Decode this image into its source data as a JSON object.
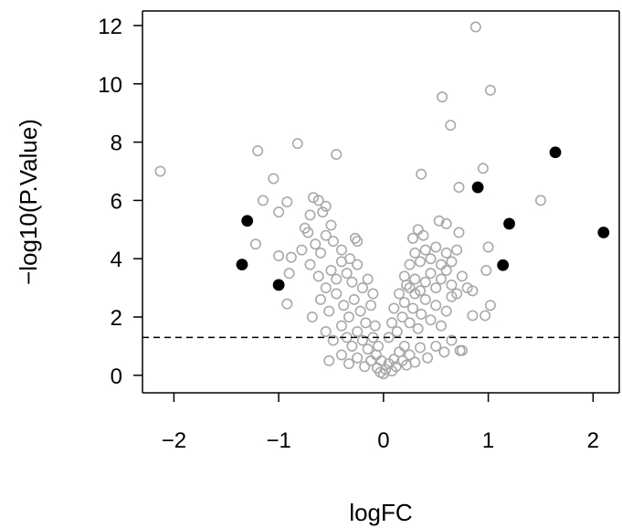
{
  "chart_data": {
    "type": "scatter",
    "title": "",
    "xlabel": "logFC",
    "ylabel": "−log10(P.Value)",
    "xlim": [
      -2.3,
      2.25
    ],
    "ylim": [
      -0.6,
      12.5
    ],
    "x_ticks": [
      -2,
      -1,
      0,
      1,
      2
    ],
    "x_tick_labels": [
      "−2",
      "−1",
      "0",
      "1",
      "2"
    ],
    "y_ticks": [
      0,
      2,
      4,
      6,
      8,
      10,
      12
    ],
    "y_tick_labels": [
      "0",
      "2",
      "4",
      "6",
      "8",
      "10",
      "12"
    ],
    "threshold_y": 1.3,
    "grid": false,
    "legend": "none",
    "colors": {
      "nonsignificant": "#a9a9a9",
      "highlighted": "#000000"
    },
    "series": [
      {
        "marker": "open-circle",
        "color": "#a9a9a9",
        "points": [
          [
            -2.13,
            7.0
          ],
          [
            -1.2,
            7.7
          ],
          [
            -1.15,
            6.0
          ],
          [
            -1.05,
            6.75
          ],
          [
            -1.0,
            5.6
          ],
          [
            -1.22,
            4.5
          ],
          [
            -1.0,
            4.1
          ],
          [
            -0.92,
            5.95
          ],
          [
            -0.88,
            4.05
          ],
          [
            -0.82,
            7.95
          ],
          [
            -0.9,
            3.5
          ],
          [
            -0.92,
            2.45
          ],
          [
            -0.78,
            4.3
          ],
          [
            -0.75,
            5.05
          ],
          [
            -0.7,
            5.5
          ],
          [
            -0.67,
            6.1
          ],
          [
            -0.62,
            6.0
          ],
          [
            -0.58,
            5.6
          ],
          [
            -0.55,
            5.8
          ],
          [
            -0.5,
            5.15
          ],
          [
            -0.45,
            7.58
          ],
          [
            -0.72,
            4.9
          ],
          [
            -0.65,
            4.5
          ],
          [
            -0.6,
            4.2
          ],
          [
            -0.55,
            4.8
          ],
          [
            -0.48,
            4.6
          ],
          [
            -0.4,
            4.3
          ],
          [
            -0.32,
            4.0
          ],
          [
            -0.27,
            4.7
          ],
          [
            -0.25,
            4.6
          ],
          [
            -0.7,
            3.8
          ],
          [
            -0.62,
            3.4
          ],
          [
            -0.55,
            3.0
          ],
          [
            -0.5,
            3.6
          ],
          [
            -0.45,
            3.3
          ],
          [
            -0.4,
            3.9
          ],
          [
            -0.35,
            3.5
          ],
          [
            -0.3,
            3.2
          ],
          [
            -0.25,
            3.8
          ],
          [
            -0.2,
            3.0
          ],
          [
            -0.15,
            3.3
          ],
          [
            -0.1,
            2.8
          ],
          [
            -0.68,
            2.0
          ],
          [
            -0.6,
            2.6
          ],
          [
            -0.52,
            2.2
          ],
          [
            -0.45,
            2.8
          ],
          [
            -0.38,
            2.4
          ],
          [
            -0.33,
            2.0
          ],
          [
            -0.28,
            2.6
          ],
          [
            -0.22,
            2.2
          ],
          [
            -0.17,
            1.8
          ],
          [
            -0.12,
            2.4
          ],
          [
            -0.08,
            1.7
          ],
          [
            -0.55,
            1.5
          ],
          [
            -0.48,
            1.2
          ],
          [
            -0.4,
            1.7
          ],
          [
            -0.35,
            1.3
          ],
          [
            -0.3,
            1.0
          ],
          [
            -0.25,
            1.5
          ],
          [
            -0.2,
            1.2
          ],
          [
            -0.15,
            0.9
          ],
          [
            -0.1,
            1.3
          ],
          [
            -0.07,
            0.7
          ],
          [
            -0.05,
            1.0
          ],
          [
            -0.02,
            0.5
          ],
          [
            -0.52,
            0.5
          ],
          [
            -0.4,
            0.7
          ],
          [
            -0.33,
            0.4
          ],
          [
            -0.25,
            0.6
          ],
          [
            -0.18,
            0.3
          ],
          [
            -0.12,
            0.5
          ],
          [
            -0.06,
            0.25
          ],
          [
            -0.03,
            0.1
          ],
          [
            0.0,
            0.05
          ],
          [
            0.02,
            0.2
          ],
          [
            0.05,
            0.4
          ],
          [
            0.08,
            0.15
          ],
          [
            0.1,
            0.55
          ],
          [
            0.12,
            0.3
          ],
          [
            0.15,
            0.8
          ],
          [
            0.18,
            0.5
          ],
          [
            0.2,
            1.0
          ],
          [
            0.22,
            0.35
          ],
          [
            0.25,
            0.7
          ],
          [
            0.3,
            0.45
          ],
          [
            0.35,
            0.95
          ],
          [
            0.42,
            0.6
          ],
          [
            0.5,
            1.0
          ],
          [
            0.58,
            0.8
          ],
          [
            0.65,
            1.2
          ],
          [
            0.75,
            0.85
          ],
          [
            0.05,
            1.3
          ],
          [
            0.08,
            1.8
          ],
          [
            0.1,
            2.3
          ],
          [
            0.13,
            1.5
          ],
          [
            0.15,
            2.8
          ],
          [
            0.18,
            2.0
          ],
          [
            0.2,
            2.5
          ],
          [
            0.22,
            3.1
          ],
          [
            0.25,
            1.8
          ],
          [
            0.28,
            2.3
          ],
          [
            0.3,
            2.8
          ],
          [
            0.33,
            1.6
          ],
          [
            0.36,
            2.1
          ],
          [
            0.4,
            2.6
          ],
          [
            0.45,
            1.9
          ],
          [
            0.5,
            2.4
          ],
          [
            0.55,
            1.7
          ],
          [
            0.6,
            2.2
          ],
          [
            0.65,
            2.7
          ],
          [
            0.2,
            3.4
          ],
          [
            0.25,
            3.0
          ],
          [
            0.3,
            3.3
          ],
          [
            0.35,
            2.9
          ],
          [
            0.4,
            3.2
          ],
          [
            0.45,
            3.5
          ],
          [
            0.5,
            3.0
          ],
          [
            0.55,
            3.3
          ],
          [
            0.6,
            3.6
          ],
          [
            0.65,
            3.1
          ],
          [
            0.7,
            2.8
          ],
          [
            0.75,
            3.4
          ],
          [
            0.8,
            3.0
          ],
          [
            0.85,
            2.9
          ],
          [
            0.25,
            3.8
          ],
          [
            0.3,
            4.2
          ],
          [
            0.35,
            3.9
          ],
          [
            0.4,
            4.3
          ],
          [
            0.45,
            4.0
          ],
          [
            0.5,
            4.4
          ],
          [
            0.55,
            3.8
          ],
          [
            0.6,
            4.2
          ],
          [
            0.65,
            3.9
          ],
          [
            0.7,
            4.3
          ],
          [
            0.28,
            4.7
          ],
          [
            0.33,
            5.0
          ],
          [
            0.38,
            4.8
          ],
          [
            0.53,
            5.3
          ],
          [
            0.6,
            5.2
          ],
          [
            0.72,
            4.9
          ],
          [
            0.36,
            6.9
          ],
          [
            0.56,
            9.55
          ],
          [
            0.64,
            8.58
          ],
          [
            0.88,
            11.95
          ],
          [
            1.02,
            9.78
          ],
          [
            0.95,
            7.1
          ],
          [
            0.72,
            6.45
          ],
          [
            1.0,
            4.4
          ],
          [
            0.98,
            3.6
          ],
          [
            1.02,
            2.4
          ],
          [
            0.97,
            2.05
          ],
          [
            0.85,
            2.05
          ],
          [
            0.73,
            0.85
          ],
          [
            1.5,
            6.0
          ]
        ]
      },
      {
        "marker": "filled-circle",
        "color": "#000000",
        "points": [
          [
            -1.3,
            5.3
          ],
          [
            -1.35,
            3.8
          ],
          [
            -1.0,
            3.1
          ],
          [
            0.9,
            6.45
          ],
          [
            1.2,
            5.2
          ],
          [
            1.14,
            3.78
          ],
          [
            1.64,
            7.65
          ],
          [
            2.1,
            4.9
          ]
        ]
      }
    ]
  }
}
